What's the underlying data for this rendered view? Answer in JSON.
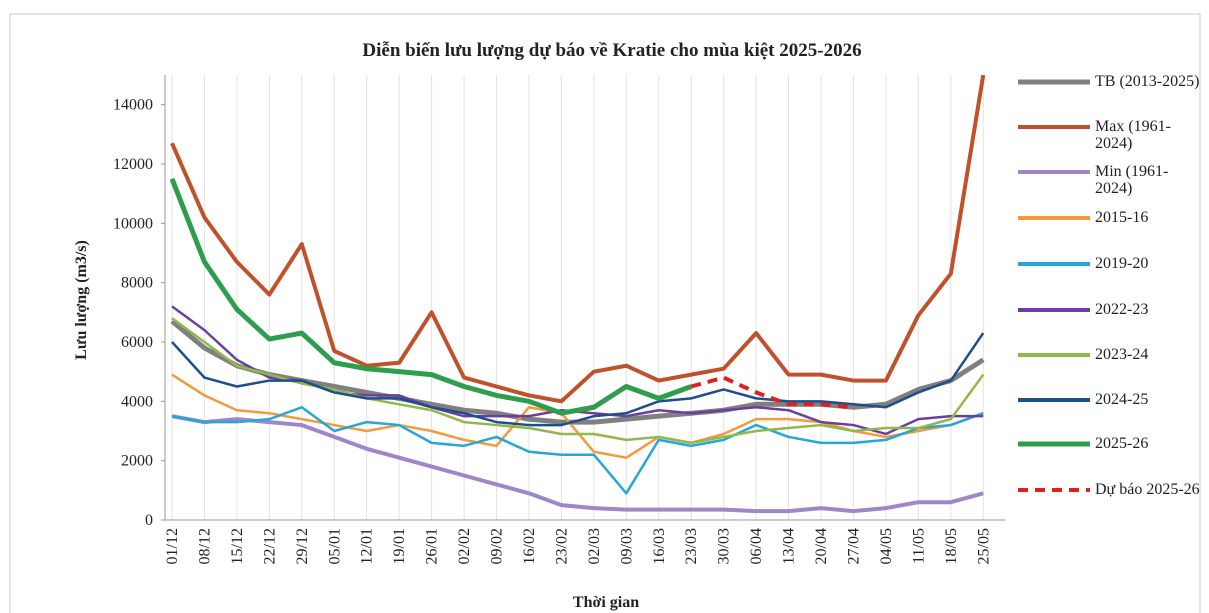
{
  "chart_data": {
    "type": "line",
    "title": "Diễn biến lưu lượng dự báo về Kratie cho mùa kiệt 2025-2026",
    "x_label": "Thời gian",
    "y_label": "Lưu lượng (m3/s)",
    "categories": [
      "01/12",
      "08/12",
      "15/12",
      "22/12",
      "29/12",
      "05/01",
      "12/01",
      "19/01",
      "26/01",
      "02/02",
      "09/02",
      "16/02",
      "23/02",
      "02/03",
      "09/03",
      "16/03",
      "23/03",
      "30/03",
      "06/04",
      "13/04",
      "20/04",
      "27/04",
      "04/05",
      "11/05",
      "18/05",
      "25/05"
    ],
    "ylim": [
      0,
      15000
    ],
    "yticks": [
      0,
      2000,
      4000,
      6000,
      8000,
      10000,
      12000,
      14000
    ],
    "grid": true,
    "legend": "right",
    "series": [
      {
        "name": "TB (2013-2025)",
        "color": "#808080",
        "line_width": 5,
        "values": [
          6700,
          5800,
          5200,
          4900,
          4700,
          4500,
          4300,
          4100,
          3900,
          3700,
          3600,
          3400,
          3300,
          3300,
          3400,
          3500,
          3600,
          3700,
          3900,
          3900,
          3900,
          3800,
          3900,
          4400,
          4700,
          5400
        ]
      },
      {
        "name": "Max (1961-2024)",
        "color": "#c0522b",
        "line_width": 4,
        "values": [
          12700,
          10200,
          8700,
          7600,
          9300,
          5700,
          5200,
          5300,
          7000,
          4800,
          4500,
          4200,
          4000,
          5000,
          5200,
          4700,
          4900,
          5100,
          6300,
          4900,
          4900,
          4700,
          4700,
          6900,
          8300,
          15000
        ]
      },
      {
        "name": "Min (1961-2024)",
        "color": "#9e86c9",
        "line_width": 4,
        "values": [
          3500,
          3300,
          3400,
          3300,
          3200,
          2800,
          2400,
          2100,
          1800,
          1500,
          1200,
          900,
          500,
          400,
          350,
          350,
          350,
          350,
          300,
          300,
          400,
          300,
          400,
          600,
          600,
          900
        ]
      },
      {
        "name": "2015-16",
        "color": "#f59a3a",
        "line_width": 2.5,
        "values": [
          4900,
          4200,
          3700,
          3600,
          3400,
          3200,
          3000,
          3200,
          3000,
          2700,
          2500,
          3800,
          3600,
          2300,
          2100,
          2800,
          2600,
          2900,
          3400,
          3400,
          3300,
          3000,
          2800,
          3000,
          3200,
          3600
        ]
      },
      {
        "name": "2019-20",
        "color": "#27a6d8",
        "line_width": 2.5,
        "values": [
          3500,
          3300,
          3300,
          3400,
          3800,
          3000,
          3300,
          3200,
          2600,
          2500,
          2800,
          2300,
          2200,
          2200,
          900,
          2700,
          2500,
          2700,
          3200,
          2800,
          2600,
          2600,
          2700,
          3100,
          3200,
          3600
        ]
      },
      {
        "name": "2022-23",
        "color": "#6b3fa0",
        "line_width": 2.5,
        "values": [
          7200,
          6400,
          5400,
          4800,
          4700,
          4300,
          4200,
          4200,
          3800,
          3500,
          3500,
          3500,
          3700,
          3600,
          3500,
          3700,
          3600,
          3700,
          3800,
          3700,
          3300,
          3200,
          2900,
          3400,
          3500,
          3500
        ]
      },
      {
        "name": "2023-24",
        "color": "#92b84a",
        "line_width": 2.5,
        "values": [
          6800,
          6000,
          5200,
          4900,
          4600,
          4400,
          4100,
          3900,
          3700,
          3300,
          3200,
          3100,
          2900,
          2900,
          2700,
          2800,
          2600,
          2800,
          3000,
          3100,
          3200,
          3000,
          3100,
          3100,
          3400,
          4900
        ]
      },
      {
        "name": "2024-25",
        "color": "#1f4e8c",
        "line_width": 2.5,
        "values": [
          6000,
          4800,
          4500,
          4700,
          4700,
          4300,
          4100,
          4100,
          3800,
          3600,
          3300,
          3200,
          3200,
          3500,
          3600,
          4000,
          4100,
          4400,
          4100,
          4000,
          4000,
          3900,
          3800,
          4300,
          4700,
          6300
        ]
      },
      {
        "name": "2025-26",
        "color": "#2e9e4e",
        "line_width": 5,
        "values": [
          11500,
          8700,
          7100,
          6100,
          6300,
          5300,
          5100,
          5000,
          4900,
          4500,
          4200,
          4000,
          3600,
          3800,
          4500,
          4100,
          4500,
          null,
          null,
          null,
          null,
          null,
          null,
          null,
          null,
          null
        ]
      },
      {
        "name": "Dự báo 2025-26",
        "color": "#e02020",
        "line_width": 4,
        "dashed": true,
        "values": [
          null,
          null,
          null,
          null,
          null,
          null,
          null,
          null,
          null,
          null,
          null,
          null,
          null,
          null,
          null,
          null,
          4500,
          4800,
          4300,
          3900,
          3900,
          3800,
          null,
          null,
          null,
          null
        ]
      }
    ]
  }
}
